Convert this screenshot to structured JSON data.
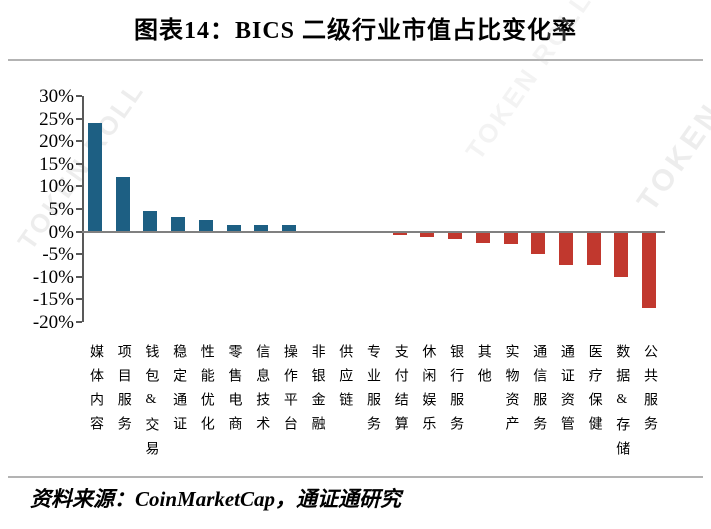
{
  "title": "图表14：BICS 二级行业市值占比变化率",
  "source": "资料来源：CoinMarketCap，通证通研究",
  "watermark": "TOKEN ROLL",
  "chart_data": {
    "type": "bar",
    "title": "图表14：BICS 二级行业市值占比变化率",
    "categories": [
      "媒体内容",
      "项目服务",
      "钱包&交易",
      "稳定通证",
      "性能优化",
      "零售电商",
      "信息技术",
      "操作平台",
      "非银金融",
      "供应链",
      "专业服务",
      "支付结算",
      "休闲娱乐",
      "银行服务",
      "其他",
      "实物资产",
      "通信服务",
      "通证资管",
      "医疗保健",
      "数据&存储",
      "公共服务"
    ],
    "values": [
      24,
      12,
      4.6,
      3.3,
      2.6,
      1.4,
      1.4,
      1.4,
      0.1,
      -0.1,
      -0.4,
      -0.7,
      -1.3,
      -1.7,
      -2.6,
      -2.7,
      -5.0,
      -7.3,
      -7.5,
      -10.0,
      -17.0
    ],
    "unit": "%",
    "xlabel": "",
    "ylabel": "",
    "ylim": [
      -20,
      30
    ],
    "ytick_step": 5,
    "grid": false,
    "legend": false,
    "positive_color": "#1d5f83",
    "negative_color": "#c1382e",
    "axis_color": "#595959",
    "zero_line_color": "#808080"
  }
}
